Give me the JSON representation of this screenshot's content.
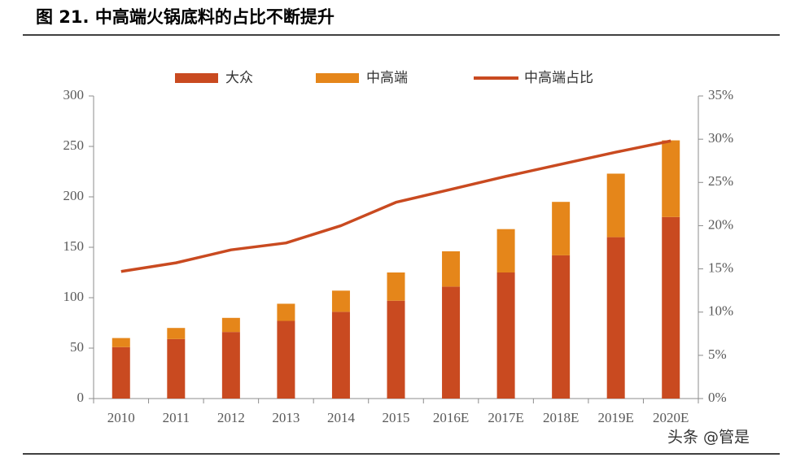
{
  "chart_data": {
    "type": "bar-line",
    "title": "图 21. 中高端火锅底料的占比不断提升",
    "watermark": "头条 @管是",
    "categories": [
      "2010",
      "2011",
      "2012",
      "2013",
      "2014",
      "2015",
      "2016E",
      "2017E",
      "2018E",
      "2019E",
      "2020E"
    ],
    "series": [
      {
        "name": "大众",
        "color": "#c94a20",
        "stack": true,
        "values": [
          51,
          59,
          66,
          77,
          86,
          97,
          111,
          125,
          142,
          160,
          180
        ]
      },
      {
        "name": "中高端",
        "color": "#e5861a",
        "stack": true,
        "values": [
          9,
          11,
          14,
          17,
          21,
          28,
          35,
          43,
          53,
          63,
          76
        ]
      },
      {
        "name": "中高端占比",
        "color": "#c94a20",
        "axis": "y2",
        "values": [
          14.7,
          15.7,
          17.2,
          18.0,
          20.0,
          22.7,
          24.2,
          25.7,
          27.1,
          28.5,
          29.8
        ]
      }
    ],
    "ylim": [
      0,
      300
    ],
    "yticks": [
      0,
      50,
      100,
      150,
      200,
      250,
      300
    ],
    "y2lim": [
      0,
      35
    ],
    "y2ticks": [
      {
        "value": 0,
        "label": "0%"
      },
      {
        "value": 5,
        "label": "5%"
      },
      {
        "value": 10,
        "label": "10%"
      },
      {
        "value": 15,
        "label": "15%"
      },
      {
        "value": 20,
        "label": "20%"
      },
      {
        "value": 25,
        "label": "25%"
      },
      {
        "value": 30,
        "label": "30%"
      },
      {
        "value": 35,
        "label": "35%"
      }
    ],
    "grid": false
  }
}
